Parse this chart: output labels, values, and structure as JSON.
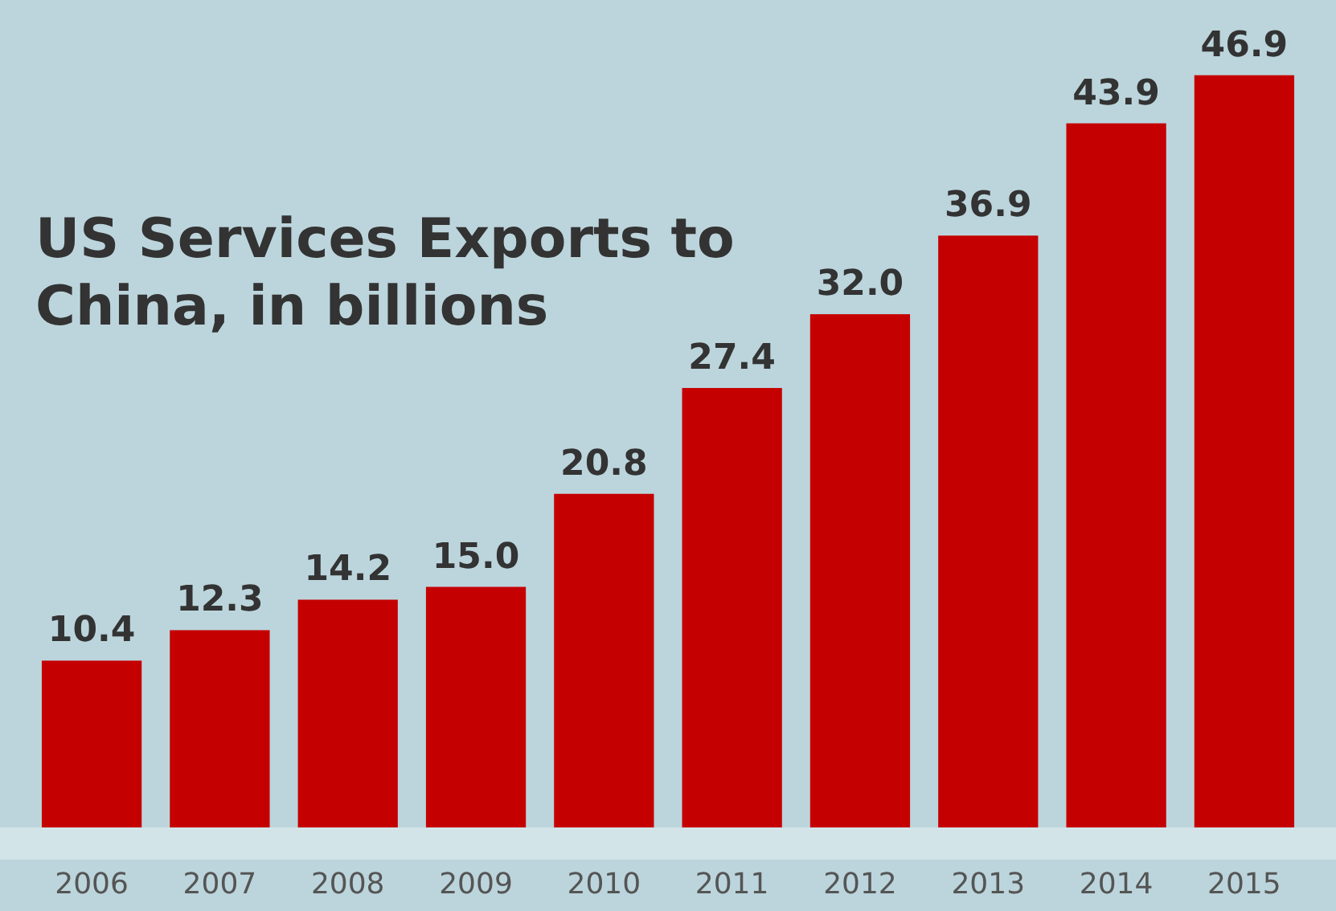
{
  "chart_data": {
    "type": "bar",
    "title": "US Services Exports to China, in billions",
    "categories": [
      "2006",
      "2007",
      "2008",
      "2009",
      "2010",
      "2011",
      "2012",
      "2013",
      "2014",
      "2015"
    ],
    "values": [
      10.4,
      12.3,
      14.2,
      15.0,
      20.8,
      27.4,
      32.0,
      36.9,
      43.9,
      46.9
    ],
    "value_labels": [
      "10.4",
      "12.3",
      "14.2",
      "15.0",
      "20.8",
      "27.4",
      "32.0",
      "36.9",
      "43.9",
      "46.9"
    ],
    "color": "#c50000"
  }
}
